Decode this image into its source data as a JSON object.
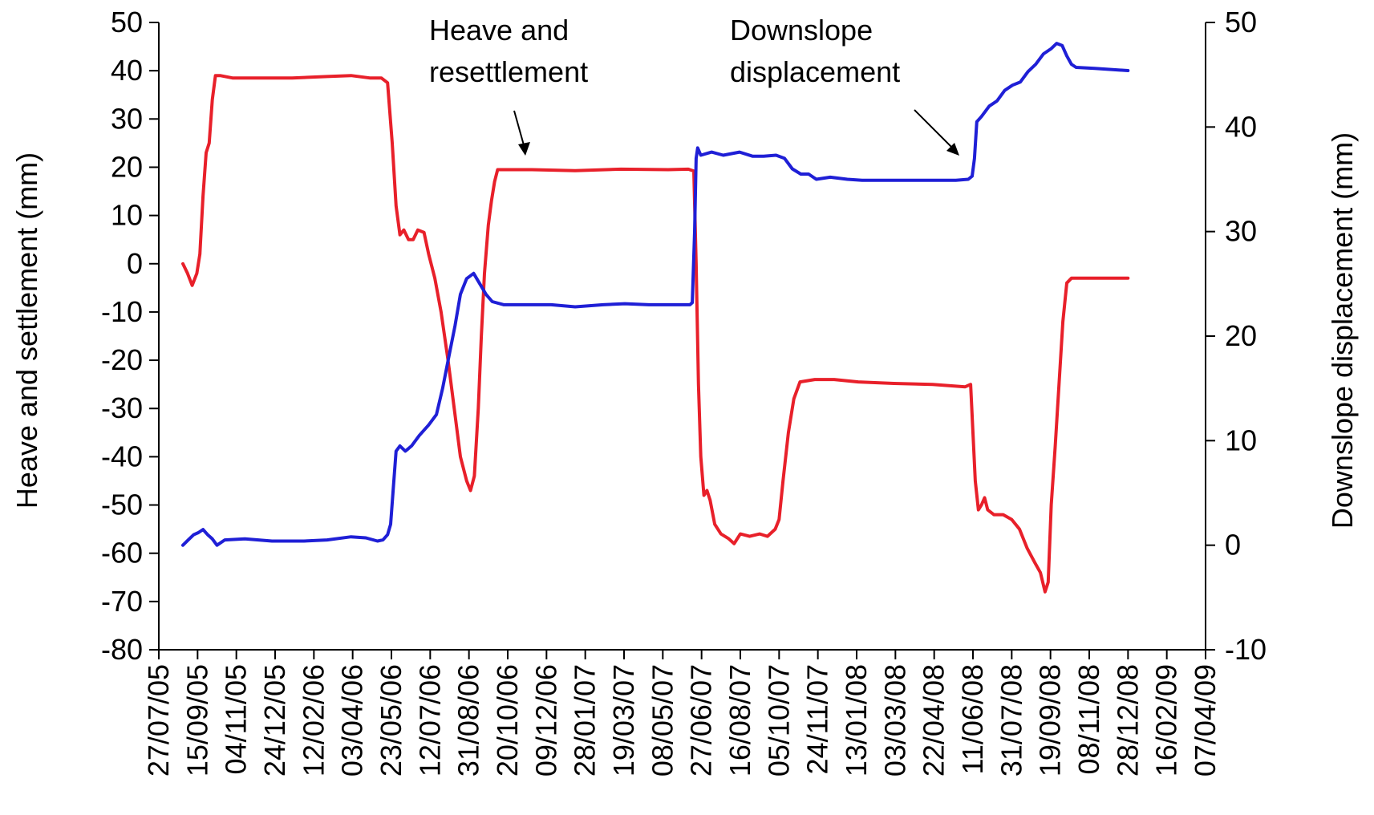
{
  "chart_data": {
    "type": "line",
    "y_left": {
      "label": "Heave and settlement (mm)",
      "range": [
        -80,
        50
      ],
      "ticks": [
        50,
        40,
        30,
        20,
        10,
        0,
        -10,
        -20,
        -30,
        -40,
        -50,
        -60,
        -70,
        -80
      ],
      "tick_labels": [
        "50",
        "40",
        "30",
        "20",
        "10",
        "0",
        "-10",
        "-20",
        "-30",
        "-40",
        "-50",
        "-60",
        "-70",
        "-80"
      ]
    },
    "y_right": {
      "label": "Downslope displacement (mm)",
      "range": [
        -10,
        50
      ],
      "ticks": [
        50,
        40,
        30,
        20,
        10,
        0,
        -10
      ],
      "tick_labels": [
        "50",
        "40",
        "30",
        "20",
        "10",
        "0",
        "-10"
      ]
    },
    "x_axis": {
      "type": "date",
      "range": [
        "2005-07-27",
        "2009-04-07"
      ],
      "tick_labels": [
        "27/07/05",
        "15/09/05",
        "04/11/05",
        "24/12/05",
        "12/02/06",
        "03/04/06",
        "23/05/06",
        "12/07/06",
        "31/08/06",
        "20/10/06",
        "09/12/06",
        "28/01/07",
        "19/03/07",
        "08/05/07",
        "27/06/07",
        "16/08/07",
        "05/10/07",
        "24/11/07",
        "13/01/08",
        "03/03/08",
        "22/04/08",
        "11/06/08",
        "31/07/08",
        "19/09/08",
        "08/11/08",
        "28/12/08",
        "16/02/09",
        "07/04/09"
      ],
      "ticks": [
        "2005-07-27",
        "2005-09-15",
        "2005-11-04",
        "2005-12-24",
        "2006-02-12",
        "2006-04-03",
        "2006-05-23",
        "2006-07-12",
        "2006-08-31",
        "2006-10-20",
        "2006-12-09",
        "2007-01-28",
        "2007-03-19",
        "2007-05-08",
        "2007-06-27",
        "2007-08-16",
        "2007-10-05",
        "2007-11-24",
        "2008-01-13",
        "2008-03-03",
        "2008-04-22",
        "2008-06-11",
        "2008-07-31",
        "2008-09-19",
        "2008-11-08",
        "2008-12-28",
        "2009-02-16",
        "2009-04-07"
      ]
    },
    "series": [
      {
        "axis": "left",
        "color": "#e8202a",
        "points": [
          [
            "2005-08-27",
            0
          ],
          [
            "2005-09-02",
            -2
          ],
          [
            "2005-09-08",
            -4.5
          ],
          [
            "2005-09-14",
            -2
          ],
          [
            "2005-09-18",
            2
          ],
          [
            "2005-09-22",
            14
          ],
          [
            "2005-09-26",
            23
          ],
          [
            "2005-09-30",
            25
          ],
          [
            "2005-10-04",
            34
          ],
          [
            "2005-10-08",
            39
          ],
          [
            "2005-10-14",
            39
          ],
          [
            "2005-10-30",
            38.5
          ],
          [
            "2005-12-01",
            38.5
          ],
          [
            "2006-01-15",
            38.5
          ],
          [
            "2006-03-01",
            38.8
          ],
          [
            "2006-04-01",
            39
          ],
          [
            "2006-04-25",
            38.5
          ],
          [
            "2006-05-10",
            38.5
          ],
          [
            "2006-05-18",
            37.5
          ],
          [
            "2006-05-24",
            25
          ],
          [
            "2006-05-29",
            12
          ],
          [
            "2006-06-03",
            6
          ],
          [
            "2006-06-08",
            7
          ],
          [
            "2006-06-14",
            5
          ],
          [
            "2006-06-20",
            5
          ],
          [
            "2006-06-26",
            7
          ],
          [
            "2006-07-04",
            6.5
          ],
          [
            "2006-07-10",
            2
          ],
          [
            "2006-07-18",
            -3
          ],
          [
            "2006-07-26",
            -10
          ],
          [
            "2006-08-04",
            -20
          ],
          [
            "2006-08-12",
            -30
          ],
          [
            "2006-08-20",
            -40
          ],
          [
            "2006-08-28",
            -45
          ],
          [
            "2006-09-02",
            -47
          ],
          [
            "2006-09-07",
            -44
          ],
          [
            "2006-09-12",
            -30
          ],
          [
            "2006-09-16",
            -15
          ],
          [
            "2006-09-20",
            -2
          ],
          [
            "2006-09-25",
            8
          ],
          [
            "2006-09-29",
            13
          ],
          [
            "2006-10-03",
            17
          ],
          [
            "2006-10-07",
            19.5
          ],
          [
            "2006-10-15",
            19.5
          ],
          [
            "2006-11-20",
            19.5
          ],
          [
            "2007-01-15",
            19.3
          ],
          [
            "2007-03-15",
            19.6
          ],
          [
            "2007-05-15",
            19.5
          ],
          [
            "2007-06-10",
            19.6
          ],
          [
            "2007-06-17",
            19.2
          ],
          [
            "2007-06-20",
            0
          ],
          [
            "2007-06-23",
            -25
          ],
          [
            "2007-06-26",
            -40
          ],
          [
            "2007-06-30",
            -48
          ],
          [
            "2007-07-04",
            -47
          ],
          [
            "2007-07-08",
            -49
          ],
          [
            "2007-07-14",
            -54
          ],
          [
            "2007-07-22",
            -56
          ],
          [
            "2007-08-01",
            -57
          ],
          [
            "2007-08-08",
            -58
          ],
          [
            "2007-08-16",
            -56
          ],
          [
            "2007-08-28",
            -56.5
          ],
          [
            "2007-09-10",
            -56
          ],
          [
            "2007-09-20",
            -56.5
          ],
          [
            "2007-09-30",
            -55
          ],
          [
            "2007-10-05",
            -53
          ],
          [
            "2007-10-10",
            -45
          ],
          [
            "2007-10-17",
            -35
          ],
          [
            "2007-10-24",
            -28
          ],
          [
            "2007-11-01",
            -24.5
          ],
          [
            "2007-11-20",
            -24
          ],
          [
            "2007-12-15",
            -24
          ],
          [
            "2008-01-15",
            -24.5
          ],
          [
            "2008-03-01",
            -24.8
          ],
          [
            "2008-04-20",
            -25
          ],
          [
            "2008-06-01",
            -25.5
          ],
          [
            "2008-06-08",
            -25
          ],
          [
            "2008-06-11",
            -35
          ],
          [
            "2008-06-14",
            -45
          ],
          [
            "2008-06-18",
            -51
          ],
          [
            "2008-06-22",
            -50
          ],
          [
            "2008-06-26",
            -48.5
          ],
          [
            "2008-06-30",
            -51
          ],
          [
            "2008-07-08",
            -52
          ],
          [
            "2008-07-20",
            -52
          ],
          [
            "2008-07-31",
            -53
          ],
          [
            "2008-08-10",
            -55
          ],
          [
            "2008-08-20",
            -59
          ],
          [
            "2008-08-30",
            -62
          ],
          [
            "2008-09-06",
            -64
          ],
          [
            "2008-09-12",
            -68
          ],
          [
            "2008-09-16",
            -66
          ],
          [
            "2008-09-20",
            -50
          ],
          [
            "2008-09-25",
            -38
          ],
          [
            "2008-09-30",
            -25
          ],
          [
            "2008-10-05",
            -12
          ],
          [
            "2008-10-10",
            -4
          ],
          [
            "2008-10-16",
            -3
          ],
          [
            "2008-11-15",
            -3
          ],
          [
            "2008-12-28",
            -3
          ]
        ]
      },
      {
        "axis": "right",
        "color": "#1f1fd6",
        "points": [
          [
            "2005-08-27",
            0
          ],
          [
            "2005-09-03",
            0.5
          ],
          [
            "2005-09-10",
            1
          ],
          [
            "2005-09-16",
            1.2
          ],
          [
            "2005-09-22",
            1.5
          ],
          [
            "2005-09-28",
            1
          ],
          [
            "2005-10-04",
            0.6
          ],
          [
            "2005-10-10",
            0
          ],
          [
            "2005-10-20",
            0.5
          ],
          [
            "2005-11-15",
            0.6
          ],
          [
            "2005-12-20",
            0.4
          ],
          [
            "2006-01-30",
            0.4
          ],
          [
            "2006-03-01",
            0.5
          ],
          [
            "2006-04-01",
            0.8
          ],
          [
            "2006-04-20",
            0.7
          ],
          [
            "2006-05-05",
            0.4
          ],
          [
            "2006-05-12",
            0.5
          ],
          [
            "2006-05-18",
            1
          ],
          [
            "2006-05-22",
            2
          ],
          [
            "2006-05-25",
            5
          ],
          [
            "2006-05-29",
            9
          ],
          [
            "2006-06-03",
            9.5
          ],
          [
            "2006-06-10",
            9
          ],
          [
            "2006-06-18",
            9.5
          ],
          [
            "2006-06-28",
            10.5
          ],
          [
            "2006-07-10",
            11.5
          ],
          [
            "2006-07-20",
            12.5
          ],
          [
            "2006-07-28",
            15
          ],
          [
            "2006-08-05",
            18
          ],
          [
            "2006-08-13",
            21
          ],
          [
            "2006-08-20",
            24
          ],
          [
            "2006-08-28",
            25.5
          ],
          [
            "2006-09-06",
            26
          ],
          [
            "2006-09-14",
            25
          ],
          [
            "2006-09-22",
            24
          ],
          [
            "2006-09-30",
            23.3
          ],
          [
            "2006-10-15",
            23
          ],
          [
            "2006-11-15",
            23
          ],
          [
            "2006-12-15",
            23
          ],
          [
            "2007-01-15",
            22.8
          ],
          [
            "2007-02-20",
            23
          ],
          [
            "2007-03-20",
            23.1
          ],
          [
            "2007-04-20",
            23
          ],
          [
            "2007-05-20",
            23
          ],
          [
            "2007-06-12",
            23
          ],
          [
            "2007-06-15",
            23.2
          ],
          [
            "2007-06-18",
            30
          ],
          [
            "2007-06-20",
            37
          ],
          [
            "2007-06-22",
            38
          ],
          [
            "2007-06-26",
            37.3
          ],
          [
            "2007-07-10",
            37.6
          ],
          [
            "2007-07-25",
            37.3
          ],
          [
            "2007-08-15",
            37.6
          ],
          [
            "2007-09-01",
            37.2
          ],
          [
            "2007-09-15",
            37.2
          ],
          [
            "2007-10-01",
            37.3
          ],
          [
            "2007-10-12",
            37
          ],
          [
            "2007-10-22",
            36
          ],
          [
            "2007-11-02",
            35.5
          ],
          [
            "2007-11-12",
            35.5
          ],
          [
            "2007-11-22",
            35
          ],
          [
            "2007-12-10",
            35.2
          ],
          [
            "2008-01-01",
            35
          ],
          [
            "2008-01-20",
            34.9
          ],
          [
            "2008-02-20",
            34.9
          ],
          [
            "2008-03-20",
            34.9
          ],
          [
            "2008-04-20",
            34.9
          ],
          [
            "2008-05-20",
            34.9
          ],
          [
            "2008-06-05",
            35
          ],
          [
            "2008-06-10",
            35.3
          ],
          [
            "2008-06-13",
            37
          ],
          [
            "2008-06-16",
            40.5
          ],
          [
            "2008-06-22",
            41
          ],
          [
            "2008-07-02",
            42
          ],
          [
            "2008-07-12",
            42.5
          ],
          [
            "2008-07-22",
            43.5
          ],
          [
            "2008-08-01",
            44
          ],
          [
            "2008-08-11",
            44.3
          ],
          [
            "2008-08-21",
            45.3
          ],
          [
            "2008-08-31",
            46
          ],
          [
            "2008-09-10",
            47
          ],
          [
            "2008-09-20",
            47.5
          ],
          [
            "2008-09-27",
            48
          ],
          [
            "2008-10-04",
            47.8
          ],
          [
            "2008-10-10",
            46.8
          ],
          [
            "2008-10-16",
            46
          ],
          [
            "2008-10-22",
            45.7
          ],
          [
            "2008-11-15",
            45.6
          ],
          [
            "2008-12-28",
            45.4
          ]
        ]
      }
    ],
    "annotations": [
      {
        "lines": [
          "Heave and",
          "resettlement"
        ]
      },
      {
        "lines": [
          "Downslope",
          "displacement"
        ]
      }
    ]
  }
}
